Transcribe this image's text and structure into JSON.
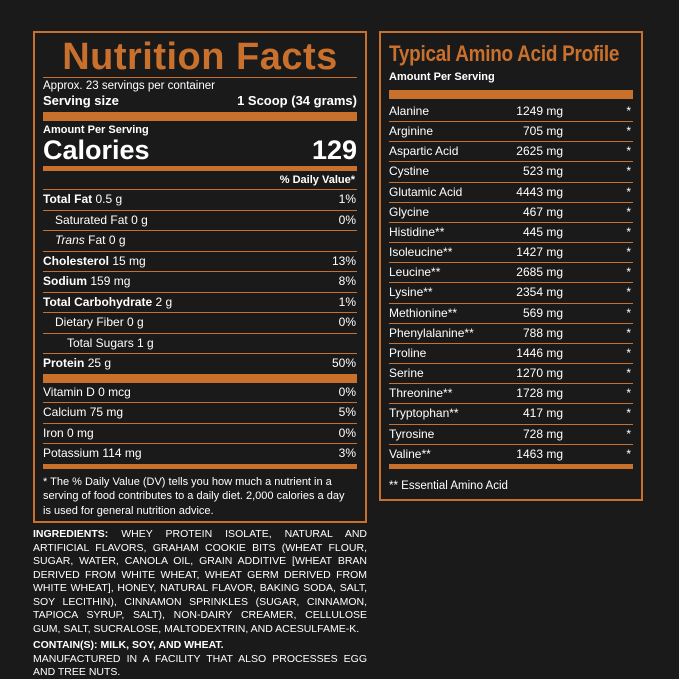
{
  "nutrition": {
    "title": "Nutrition Facts",
    "servings_per_container": "Approx. 23 servings per container",
    "serving_size_label": "Serving size",
    "serving_size_value": "1 Scoop (34 grams)",
    "amount_per_serving": "Amount Per Serving",
    "calories_label": "Calories",
    "calories_value": "129",
    "dv_header": "% Daily Value*",
    "rows": [
      {
        "name": "Total Fat",
        "amount": "0.5 g",
        "dv": "1%"
      },
      {
        "name": "Saturated Fat",
        "amount": "0 g",
        "dv": "0%"
      },
      {
        "name": "Trans",
        "name_suffix": "Fat",
        "amount": "0 g",
        "dv": ""
      },
      {
        "name": "Cholesterol",
        "amount": "15 mg",
        "dv": "13%"
      },
      {
        "name": "Sodium",
        "amount": "159 mg",
        "dv": "8%"
      },
      {
        "name": "Total Carbohydrate",
        "amount": "2 g",
        "dv": "1%"
      },
      {
        "name": "Dietary Fiber",
        "amount": "0 g",
        "dv": "0%"
      },
      {
        "name": "Total Sugars",
        "amount": "1 g",
        "dv": ""
      },
      {
        "name": "Protein",
        "amount": "25 g",
        "dv": "50%"
      },
      {
        "name": "Vitamin D",
        "amount": "0 mcg",
        "dv": "0%"
      },
      {
        "name": "Calcium",
        "amount": "75 mg",
        "dv": "5%"
      },
      {
        "name": "Iron",
        "amount": "0 mg",
        "dv": "0%"
      },
      {
        "name": "Potassium",
        "amount": "114 mg",
        "dv": "3%"
      }
    ],
    "footnote": "* The % Daily Value (DV) tells you how much a nutrient in a serving of food contributes to a daily diet. 2,000 calories a day is used for general nutrition advice."
  },
  "amino": {
    "title": "Typical Amino Acid Profile",
    "subtitle": "Amount Per Serving",
    "rows": [
      {
        "name": "Alanine",
        "value": "1249 mg",
        "mark": "*"
      },
      {
        "name": "Arginine",
        "value": "705 mg",
        "mark": "*"
      },
      {
        "name": "Aspartic Acid",
        "value": "2625 mg",
        "mark": "*"
      },
      {
        "name": "Cystine",
        "value": "523 mg",
        "mark": "*"
      },
      {
        "name": "Glutamic Acid",
        "value": "4443 mg",
        "mark": "*"
      },
      {
        "name": "Glycine",
        "value": "467 mg",
        "mark": "*"
      },
      {
        "name": "Histidine**",
        "value": "445 mg",
        "mark": "*"
      },
      {
        "name": "Isoleucine**",
        "value": "1427 mg",
        "mark": "*"
      },
      {
        "name": "Leucine**",
        "value": "2685 mg",
        "mark": "*"
      },
      {
        "name": "Lysine**",
        "value": "2354 mg",
        "mark": "*"
      },
      {
        "name": "Methionine**",
        "value": "569 mg",
        "mark": "*"
      },
      {
        "name": "Phenylalanine**",
        "value": "788 mg",
        "mark": "*"
      },
      {
        "name": "Proline",
        "value": "1446 mg",
        "mark": "*"
      },
      {
        "name": "Serine",
        "value": "1270 mg",
        "mark": "*"
      },
      {
        "name": "Threonine**",
        "value": "1728 mg",
        "mark": "*"
      },
      {
        "name": "Tryptophan**",
        "value": "417 mg",
        "mark": "*"
      },
      {
        "name": "Tyrosine",
        "value": "728 mg",
        "mark": "*"
      },
      {
        "name": "Valine**",
        "value": "1463 mg",
        "mark": "*"
      }
    ],
    "footnote": "** Essential Amino Acid"
  },
  "ingredients": {
    "label": "INGREDIENTS:",
    "text": "WHEY PROTEIN ISOLATE, NATURAL AND ARTIFICIAL FLAVORS, GRAHAM COOKIE BITS (WHEAT FLOUR, SUGAR, WATER, CANOLA OIL, GRAIN ADDITIVE [WHEAT BRAN DERIVED FROM WHITE WHEAT, WHEAT GERM DERIVED FROM WHITE WHEAT], HONEY, NATURAL FLAVOR, BAKING SODA, SALT, SOY LECITHIN), CINNAMON SPRINKLES (SUGAR, CINNAMON, TAPIOCA SYRUP, SALT), NON-DAIRY CREAMER, CELLULOSE GUM, SALT, SUCRALOSE, MALTODEXTRIN, AND ACESULFAME-K.",
    "contains": "CONTAIN(S): MILK, SOY, AND WHEAT.",
    "facility": "MANUFACTURED IN A FACILITY THAT ALSO PROCESSES EGG AND TREE NUTS."
  },
  "colors": {
    "accent": "#c8702c",
    "background": "#1a1a1a",
    "text": "#ffffff"
  }
}
